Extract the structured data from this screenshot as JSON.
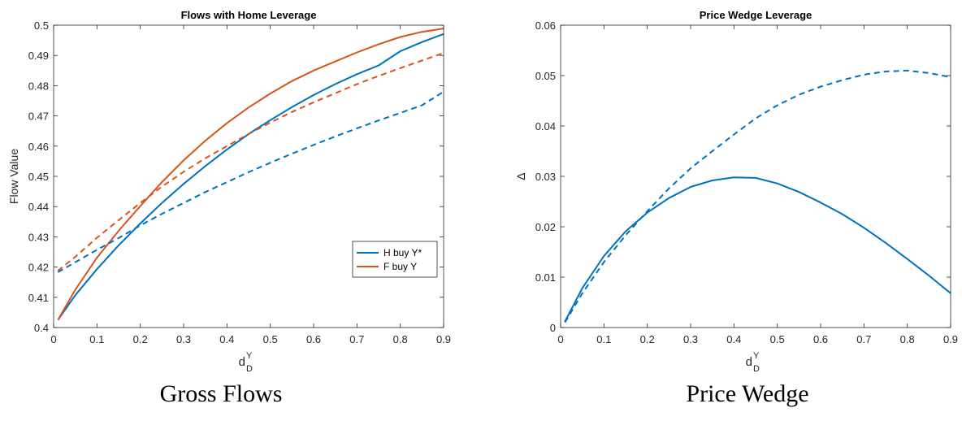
{
  "chart_data": [
    {
      "type": "line",
      "title": "Flows with Home Leverage",
      "xlabel": "d",
      "xlabel_sub": "D",
      "xlabel_sup": "Y",
      "ylabel": "Flow Value",
      "xlim": [
        0,
        0.9
      ],
      "ylim": [
        0.4,
        0.5
      ],
      "xticks": [
        0,
        0.1,
        0.2,
        0.3,
        0.4,
        0.5,
        0.6,
        0.7,
        0.8,
        0.9
      ],
      "xtick_labels": [
        "0",
        "0.1",
        "0.2",
        "0.3",
        "0.4",
        "0.5",
        "0.6",
        "0.7",
        "0.8",
        "0.9"
      ],
      "yticks": [
        0.4,
        0.41,
        0.42,
        0.43,
        0.44,
        0.45,
        0.46,
        0.47,
        0.48,
        0.49,
        0.5
      ],
      "ytick_labels": [
        "0.4",
        "0.41",
        "0.42",
        "0.43",
        "0.44",
        "0.45",
        "0.46",
        "0.47",
        "0.48",
        "0.49",
        "0.5"
      ],
      "grid": false,
      "legend_position": "lower-right",
      "series": [
        {
          "name": "H buy Y*",
          "color": "#0072bd",
          "dash": false,
          "x": [
            0.01,
            0.05,
            0.1,
            0.15,
            0.2,
            0.25,
            0.3,
            0.35,
            0.4,
            0.45,
            0.5,
            0.55,
            0.6,
            0.65,
            0.7,
            0.75,
            0.8,
            0.85,
            0.9
          ],
          "y": [
            0.4025,
            0.4107,
            0.4193,
            0.4272,
            0.4344,
            0.4412,
            0.4475,
            0.4534,
            0.4589,
            0.464,
            0.4686,
            0.4729,
            0.4769,
            0.4805,
            0.4838,
            0.4867,
            0.4914,
            0.4944,
            0.4971
          ]
        },
        {
          "name": "F buy Y",
          "color": "#d95319",
          "dash": false,
          "x": [
            0.01,
            0.05,
            0.1,
            0.15,
            0.2,
            0.25,
            0.3,
            0.35,
            0.4,
            0.45,
            0.5,
            0.55,
            0.6,
            0.65,
            0.7,
            0.75,
            0.8,
            0.85,
            0.9
          ],
          "y": [
            0.4025,
            0.4125,
            0.4231,
            0.432,
            0.4402,
            0.4481,
            0.4553,
            0.4618,
            0.4676,
            0.4728,
            0.4774,
            0.4815,
            0.485,
            0.488,
            0.491,
            0.4937,
            0.4961,
            0.4978,
            0.4989
          ]
        },
        {
          "name": "",
          "color": "#0072bd",
          "dash": true,
          "x": [
            0.01,
            0.05,
            0.1,
            0.15,
            0.2,
            0.25,
            0.3,
            0.35,
            0.4,
            0.45,
            0.5,
            0.55,
            0.6,
            0.65,
            0.7,
            0.75,
            0.8,
            0.85,
            0.9
          ],
          "y": [
            0.4183,
            0.4216,
            0.4257,
            0.4296,
            0.4338,
            0.4376,
            0.4412,
            0.4448,
            0.4481,
            0.4514,
            0.4545,
            0.4575,
            0.4604,
            0.4632,
            0.4659,
            0.4685,
            0.471,
            0.4735,
            0.478
          ]
        },
        {
          "name": "",
          "color": "#d95319",
          "dash": true,
          "x": [
            0.01,
            0.05,
            0.1,
            0.15,
            0.2,
            0.25,
            0.3,
            0.35,
            0.4,
            0.45,
            0.5,
            0.55,
            0.6,
            0.65,
            0.7,
            0.75,
            0.8,
            0.85,
            0.9
          ],
          "y": [
            0.4188,
            0.4234,
            0.4297,
            0.4355,
            0.4412,
            0.4466,
            0.4515,
            0.456,
            0.46,
            0.464,
            0.4678,
            0.4713,
            0.4745,
            0.4775,
            0.4805,
            0.4832,
            0.4858,
            0.4883,
            0.4908
          ]
        }
      ]
    },
    {
      "type": "line",
      "title": "Price Wedge Leverage",
      "xlabel": "d",
      "xlabel_sub": "D",
      "xlabel_sup": "Y",
      "ylabel": "Δ",
      "xlim": [
        0,
        0.9
      ],
      "ylim": [
        0,
        0.06
      ],
      "xticks": [
        0,
        0.1,
        0.2,
        0.3,
        0.4,
        0.5,
        0.6,
        0.7,
        0.8,
        0.9
      ],
      "xtick_labels": [
        "0",
        "0.1",
        "0.2",
        "0.3",
        "0.4",
        "0.5",
        "0.6",
        "0.7",
        "0.8",
        "0.9"
      ],
      "yticks": [
        0,
        0.01,
        0.02,
        0.03,
        0.04,
        0.05,
        0.06
      ],
      "ytick_labels": [
        "0",
        "0.01",
        "0.02",
        "0.03",
        "0.04",
        "0.05",
        "0.06"
      ],
      "grid": false,
      "series": [
        {
          "name": "",
          "color": "#0072bd",
          "dash": false,
          "x": [
            0.01,
            0.05,
            0.1,
            0.15,
            0.2,
            0.25,
            0.3,
            0.35,
            0.4,
            0.45,
            0.5,
            0.55,
            0.6,
            0.65,
            0.7,
            0.75,
            0.8,
            0.85,
            0.9
          ],
          "y": [
            0.0012,
            0.0078,
            0.0142,
            0.0191,
            0.0228,
            0.0257,
            0.0279,
            0.0292,
            0.0298,
            0.0297,
            0.0286,
            0.0269,
            0.0248,
            0.0225,
            0.0198,
            0.0168,
            0.0136,
            0.0103,
            0.0068
          ]
        },
        {
          "name": "",
          "color": "#0072bd",
          "dash": true,
          "x": [
            0.01,
            0.05,
            0.1,
            0.15,
            0.2,
            0.25,
            0.3,
            0.35,
            0.4,
            0.45,
            0.5,
            0.55,
            0.6,
            0.65,
            0.7,
            0.75,
            0.8,
            0.85,
            0.9
          ],
          "y": [
            0.001,
            0.0068,
            0.013,
            0.0183,
            0.0231,
            0.0276,
            0.0316,
            0.035,
            0.0383,
            0.0415,
            0.0441,
            0.0462,
            0.0478,
            0.0491,
            0.0502,
            0.0508,
            0.051,
            0.0505,
            0.0497
          ]
        }
      ]
    }
  ],
  "captions": {
    "left": "Gross Flows",
    "right": "Price Wedge"
  }
}
